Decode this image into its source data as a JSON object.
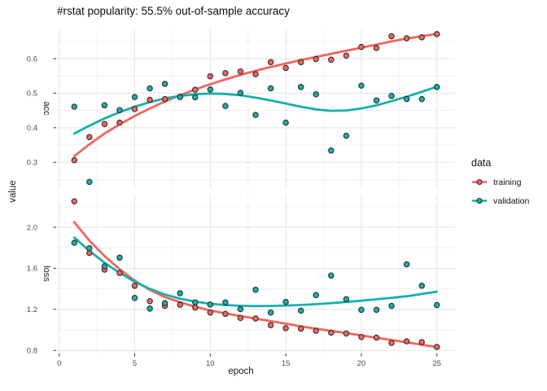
{
  "title": "#rstat popularity: 55.5% out-of-sample accuracy",
  "axes": {
    "x_title": "epoch",
    "y_title": "value"
  },
  "legend": {
    "title": "data",
    "items": [
      {
        "label": "training",
        "color": "#f0655d"
      },
      {
        "label": "validation",
        "color": "#14b0ad"
      }
    ]
  },
  "colors": {
    "grid_major": "#e3e3e3",
    "grid_minor": "#f1f1f1",
    "tick": "#333333",
    "point_stroke": "#2e2e2e",
    "background": "#ffffff"
  },
  "chart_data": {
    "type": "scatter",
    "title": "#rstat popularity: 55.5% out-of-sample accuracy",
    "xlabel": "epoch",
    "ylabel": "value",
    "grid": true,
    "legend_position": "right",
    "x": [
      1,
      2,
      3,
      4,
      5,
      6,
      7,
      8,
      9,
      10,
      11,
      12,
      13,
      14,
      15,
      16,
      17,
      18,
      19,
      20,
      21,
      22,
      23,
      24,
      25
    ],
    "xlim": [
      -0.2,
      26.2
    ],
    "xtick_values": [
      0,
      5,
      10,
      15,
      20,
      25
    ],
    "xtick_labels": [
      "0",
      "5",
      "10",
      "15",
      "20",
      "25"
    ],
    "xticks_minor": [
      2.5,
      7.5,
      12.5,
      17.5,
      22.5
    ],
    "facets": [
      {
        "label": "acc",
        "ylim": [
          0.225,
          0.685
        ],
        "ytick_values": [
          0.3,
          0.4,
          0.5,
          0.6
        ],
        "ytick_labels": [
          "0.3",
          "0.4",
          "0.5",
          "0.6"
        ],
        "yticks_minor": [
          0.25,
          0.35,
          0.45,
          0.55,
          0.65
        ],
        "series": [
          {
            "name": "training",
            "points": [
              0.306,
              0.373,
              0.411,
              0.415,
              0.454,
              0.481,
              0.483,
              0.49,
              0.51,
              0.549,
              0.558,
              0.563,
              0.555,
              0.59,
              0.573,
              0.59,
              0.599,
              0.597,
              0.609,
              0.634,
              0.631,
              0.665,
              0.659,
              0.662,
              0.671
            ],
            "smooth": [
              0.318,
              0.352,
              0.383,
              0.41,
              0.434,
              0.456,
              0.476,
              0.494,
              0.511,
              0.526,
              0.54,
              0.553,
              0.565,
              0.576,
              0.586,
              0.596,
              0.605,
              0.614,
              0.623,
              0.632,
              0.641,
              0.65,
              0.658,
              0.665,
              0.672
            ]
          },
          {
            "name": "validation",
            "points": [
              0.461,
              0.243,
              0.465,
              0.451,
              0.489,
              0.514,
              0.527,
              0.489,
              0.488,
              0.511,
              0.463,
              0.501,
              0.437,
              0.514,
              0.415,
              0.518,
              0.497,
              0.334,
              0.377,
              0.522,
              0.479,
              0.492,
              0.483,
              0.483,
              0.518
            ],
            "smooth": [
              0.383,
              0.406,
              0.427,
              0.445,
              0.461,
              0.474,
              0.485,
              0.492,
              0.497,
              0.499,
              0.498,
              0.494,
              0.487,
              0.479,
              0.47,
              0.461,
              0.453,
              0.449,
              0.45,
              0.456,
              0.465,
              0.477,
              0.49,
              0.504,
              0.519
            ]
          }
        ]
      },
      {
        "label": "loss",
        "ylim": [
          0.77,
          2.325
        ],
        "ytick_values": [
          0.8,
          1.2,
          1.6,
          2.0
        ],
        "ytick_labels": [
          "0.8",
          "1.2",
          "1.6",
          "2.0"
        ],
        "yticks_minor": [
          1.0,
          1.4,
          1.8,
          2.2
        ],
        "series": [
          {
            "name": "training",
            "points": [
              2.253,
              1.75,
              1.587,
              1.555,
              1.43,
              1.28,
              1.234,
              1.245,
              1.218,
              1.169,
              1.156,
              1.116,
              1.111,
              1.046,
              1.017,
              1.012,
              0.991,
              0.973,
              0.965,
              0.931,
              0.925,
              0.873,
              0.889,
              0.881,
              0.834
            ],
            "smooth": [
              2.05,
              1.87,
              1.72,
              1.59,
              1.48,
              1.39,
              1.32,
              1.27,
              1.225,
              1.19,
              1.16,
              1.135,
              1.11,
              1.085,
              1.06,
              1.035,
              1.012,
              0.99,
              0.968,
              0.946,
              0.924,
              0.902,
              0.879,
              0.856,
              0.833
            ]
          },
          {
            "name": "validation",
            "points": [
              1.849,
              1.796,
              1.62,
              1.704,
              1.312,
              1.208,
              1.261,
              1.357,
              1.268,
              1.247,
              1.268,
              1.202,
              1.391,
              1.169,
              1.273,
              1.187,
              1.339,
              1.529,
              1.3,
              1.195,
              1.195,
              1.234,
              1.639,
              1.43,
              1.242
            ],
            "smooth": [
              1.9,
              1.77,
              1.655,
              1.555,
              1.47,
              1.4,
              1.345,
              1.305,
              1.275,
              1.255,
              1.242,
              1.235,
              1.232,
              1.233,
              1.237,
              1.243,
              1.251,
              1.261,
              1.272,
              1.285,
              1.298,
              1.313,
              1.328,
              1.35,
              1.373
            ]
          }
        ]
      }
    ]
  }
}
